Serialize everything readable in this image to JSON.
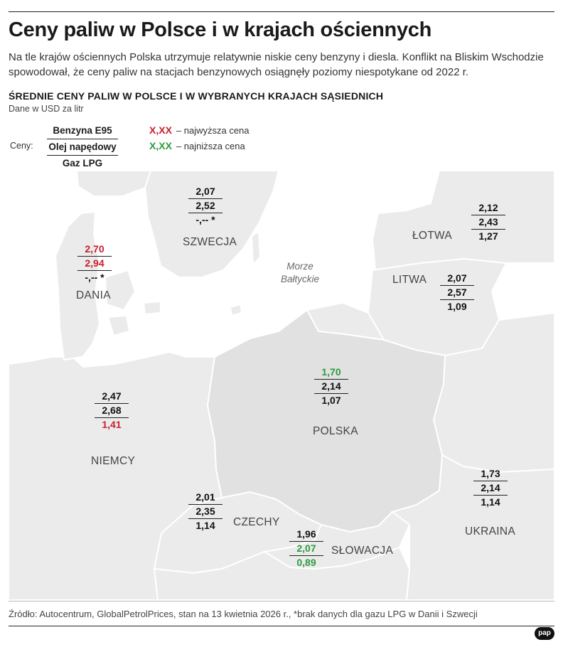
{
  "title": "Ceny paliw w Polsce i w krajach ościennych",
  "subtitle": "Na tle krajów ościennych Polska utrzymuje relatywnie niskie ceny benzyny i diesla. Konflikt na Bliskim Wschodzie spowodował, że ceny paliw na stacjach benzynowych osiągnęły poziomy niespotykane od 2022 r.",
  "section_heading": "ŚREDNIE CENY PALIW W POLSCE I W WYBRANYCH KRAJACH SĄSIEDNICH",
  "unit_note": "Dane w USD za litr",
  "legend": {
    "label": "Ceny:",
    "fuels": [
      "Benzyna E95",
      "Olej napędowy",
      "Gaz LPG"
    ],
    "highest_marker": "X,XX",
    "highest_text": "– najwyższa cena",
    "lowest_marker": "X,XX",
    "lowest_text": "– najniższa cena",
    "highest_color": "#c8202f",
    "lowest_color": "#2e9b3e"
  },
  "sea_label": "Morze Bałtyckie",
  "countries": [
    {
      "name": "SZWECJA",
      "e95": "2,07",
      "diesel": "2,52",
      "lpg": "-,-- *",
      "e95_hl": "",
      "diesel_hl": "",
      "lpg_hl": ""
    },
    {
      "name": "ŁOTWA",
      "e95": "2,12",
      "diesel": "2,43",
      "lpg": "1,27",
      "e95_hl": "",
      "diesel_hl": "",
      "lpg_hl": ""
    },
    {
      "name": "DANIA",
      "e95": "2,70",
      "diesel": "2,94",
      "lpg": "-,-- *",
      "e95_hl": "red",
      "diesel_hl": "red",
      "lpg_hl": ""
    },
    {
      "name": "LITWA",
      "e95": "2,07",
      "diesel": "2,57",
      "lpg": "1,09",
      "e95_hl": "",
      "diesel_hl": "",
      "lpg_hl": ""
    },
    {
      "name": "POLSKA",
      "e95": "1,70",
      "diesel": "2,14",
      "lpg": "1,07",
      "e95_hl": "green",
      "diesel_hl": "",
      "lpg_hl": ""
    },
    {
      "name": "NIEMCY",
      "e95": "2,47",
      "diesel": "2,68",
      "lpg": "1,41",
      "e95_hl": "",
      "diesel_hl": "",
      "lpg_hl": "red"
    },
    {
      "name": "UKRAINA",
      "e95": "1,73",
      "diesel": "2,14",
      "lpg": "1,14",
      "e95_hl": "",
      "diesel_hl": "",
      "lpg_hl": ""
    },
    {
      "name": "CZECHY",
      "e95": "2,01",
      "diesel": "2,35",
      "lpg": "1,14",
      "e95_hl": "",
      "diesel_hl": "",
      "lpg_hl": ""
    },
    {
      "name": "SŁOWACJA",
      "e95": "1,96",
      "diesel": "2,07",
      "lpg": "0,89",
      "e95_hl": "",
      "diesel_hl": "green",
      "lpg_hl": "green"
    }
  ],
  "colors": {
    "land": "#ebebeb",
    "poland": "#e1e1e1",
    "border": "#ffffff"
  },
  "source": "Źródło: Autocentrum, GlobalPetrolPrices, stan na 13 kwietnia 2026 r., *brak danych dla gazu LPG w Danii i Szwecji",
  "logo_text": "pap"
}
